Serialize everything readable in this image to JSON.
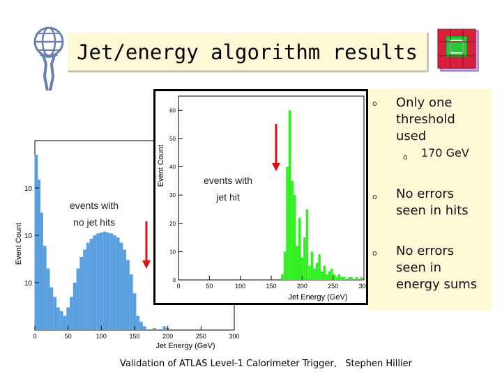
{
  "slide": {
    "title": "Jet/energy algorithm results",
    "footer": "Validation of ATLAS Level-1 Calorimeter Trigger,   Stephen Hillier",
    "bullets": [
      {
        "text": "Only one threshold used",
        "sub": "170 GeV"
      },
      {
        "text": "No errors seen in hits"
      },
      {
        "text": "No errors seen in energy sums"
      }
    ],
    "annotations": {
      "no_jet": "events with\nno jet hits",
      "jet": "events with\njet hit"
    },
    "colors": {
      "title_bg": "#fdf9d6",
      "panel_bg": "#fdf9d6",
      "blue_hist": "#5aa0e0",
      "green_hist": "#33ee22",
      "arrow": "#dd1111"
    }
  },
  "chart_data": [
    {
      "type": "bar",
      "title": "",
      "xlabel": "Jet Energy (GeV)",
      "ylabel": "Event Count",
      "yscale": "log",
      "xlim": [
        0,
        300
      ],
      "ylim": [
        1,
        10000
      ],
      "x_ticks": [
        "0",
        "50",
        "100",
        "150",
        "200",
        "250",
        "300"
      ],
      "y_ticks": [
        "10",
        "10",
        "10"
      ],
      "grid": false,
      "color": "#5aa0e0",
      "series": [
        {
          "x": [
            2,
            6,
            10,
            15,
            20,
            25,
            30,
            35,
            40,
            45,
            50,
            55,
            60,
            65,
            70,
            75,
            80,
            85,
            90,
            95,
            100,
            105,
            110,
            115,
            120,
            125,
            130,
            135,
            140,
            145,
            150,
            155,
            160,
            165,
            170,
            175,
            180,
            185,
            190,
            195,
            200,
            205,
            210,
            220,
            230,
            240
          ],
          "values": [
            5000,
            1500,
            300,
            60,
            20,
            8,
            5,
            3,
            2.5,
            2,
            3,
            5,
            10,
            20,
            35,
            50,
            70,
            85,
            100,
            110,
            115,
            120,
            115,
            110,
            100,
            90,
            70,
            50,
            30,
            15,
            6,
            2,
            1.5,
            1.2,
            1,
            1,
            1.1,
            1,
            1,
            1.2,
            1.1,
            1,
            1,
            1,
            1,
            1
          ]
        }
      ]
    },
    {
      "type": "bar",
      "title": "",
      "xlabel": "Jet Energy (GeV)",
      "ylabel": "Event Count",
      "xlim": [
        0,
        300
      ],
      "ylim": [
        0,
        65
      ],
      "x_ticks": [
        "0",
        "50",
        "100",
        "150",
        "200",
        "250",
        "300"
      ],
      "y_ticks": [
        "0",
        "10",
        "20",
        "30",
        "40",
        "50",
        "60"
      ],
      "grid": false,
      "color": "#33ee22",
      "series": [
        {
          "x": [
            168,
            172,
            176,
            180,
            184,
            188,
            192,
            196,
            200,
            204,
            208,
            212,
            216,
            220,
            224,
            228,
            232,
            236,
            240,
            244,
            248,
            252,
            256,
            260,
            264,
            268,
            272,
            276,
            280,
            284,
            288,
            292,
            296
          ],
          "values": [
            2,
            10,
            40,
            60,
            35,
            30,
            12,
            22,
            8,
            15,
            25,
            5,
            10,
            4,
            6,
            9,
            3,
            5,
            2,
            3,
            4,
            2,
            1,
            2,
            1,
            1,
            0,
            1,
            1,
            0,
            1,
            0,
            1
          ]
        }
      ]
    }
  ]
}
